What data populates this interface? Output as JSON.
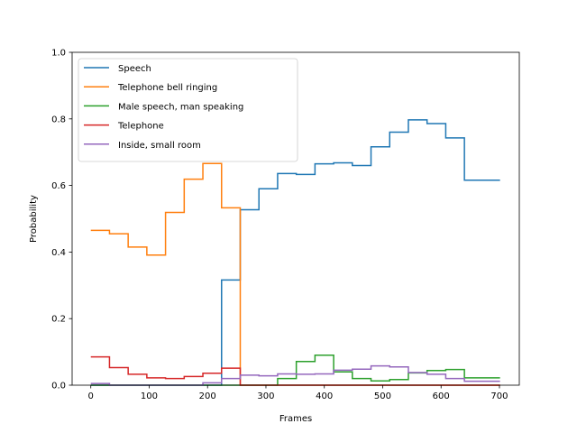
{
  "chart_data": {
    "type": "line",
    "step": true,
    "xlabel": "Frames",
    "ylabel": "Probability",
    "xlim": [
      -32,
      734
    ],
    "ylim": [
      0.0,
      1.0
    ],
    "xticks": [
      0,
      100,
      200,
      300,
      400,
      500,
      600,
      700
    ],
    "yticks": [
      0.0,
      0.2,
      0.4,
      0.6,
      0.8,
      1.0
    ],
    "ytick_labels": [
      "0.0",
      "0.2",
      "0.4",
      "0.6",
      "0.8",
      "1.0"
    ],
    "grid": false,
    "legend_position": "upper-left",
    "x": [
      0,
      32,
      64,
      96,
      128,
      160,
      192,
      224,
      256,
      288,
      320,
      352,
      384,
      416,
      448,
      480,
      512,
      544,
      576,
      608,
      640,
      701
    ],
    "series": [
      {
        "name": "Speech",
        "color": "#1f77b4",
        "values": [
          0.0,
          0.0,
          0.0,
          0.0,
          0.0,
          0.0,
          0.0,
          0.316,
          0.527,
          0.59,
          0.636,
          0.633,
          0.665,
          0.668,
          0.66,
          0.716,
          0.76,
          0.797,
          0.786,
          0.743,
          0.616,
          0.616
        ]
      },
      {
        "name": "Telephone bell ringing",
        "color": "#ff7f0e",
        "values": [
          0.465,
          0.455,
          0.415,
          0.391,
          0.519,
          0.619,
          0.666,
          0.533,
          0.0,
          0.0,
          0.0,
          0.0,
          0.0,
          0.0,
          0.0,
          0.0,
          0.0,
          0.0,
          0.0,
          0.0,
          0.0,
          0.0
        ]
      },
      {
        "name": "Male speech, man speaking",
        "color": "#2ca02c",
        "values": [
          0.0,
          0.0,
          0.0,
          0.0,
          0.0,
          0.0,
          0.0,
          0.0,
          0.0,
          0.0,
          0.02,
          0.071,
          0.09,
          0.04,
          0.02,
          0.013,
          0.017,
          0.037,
          0.044,
          0.047,
          0.022,
          0.022
        ]
      },
      {
        "name": "Telephone",
        "color": "#d62728",
        "values": [
          0.085,
          0.053,
          0.033,
          0.022,
          0.02,
          0.026,
          0.036,
          0.051,
          0.0,
          0.0,
          0.0,
          0.0,
          0.0,
          0.0,
          0.0,
          0.0,
          0.0,
          0.0,
          0.0,
          0.0,
          0.0,
          0.0
        ]
      },
      {
        "name": "Inside, small room",
        "color": "#9467bd",
        "values": [
          0.005,
          0.0,
          0.0,
          0.0,
          0.0,
          0.0,
          0.007,
          0.02,
          0.03,
          0.028,
          0.034,
          0.033,
          0.034,
          0.045,
          0.048,
          0.058,
          0.055,
          0.038,
          0.033,
          0.02,
          0.012,
          0.012
        ]
      }
    ]
  }
}
